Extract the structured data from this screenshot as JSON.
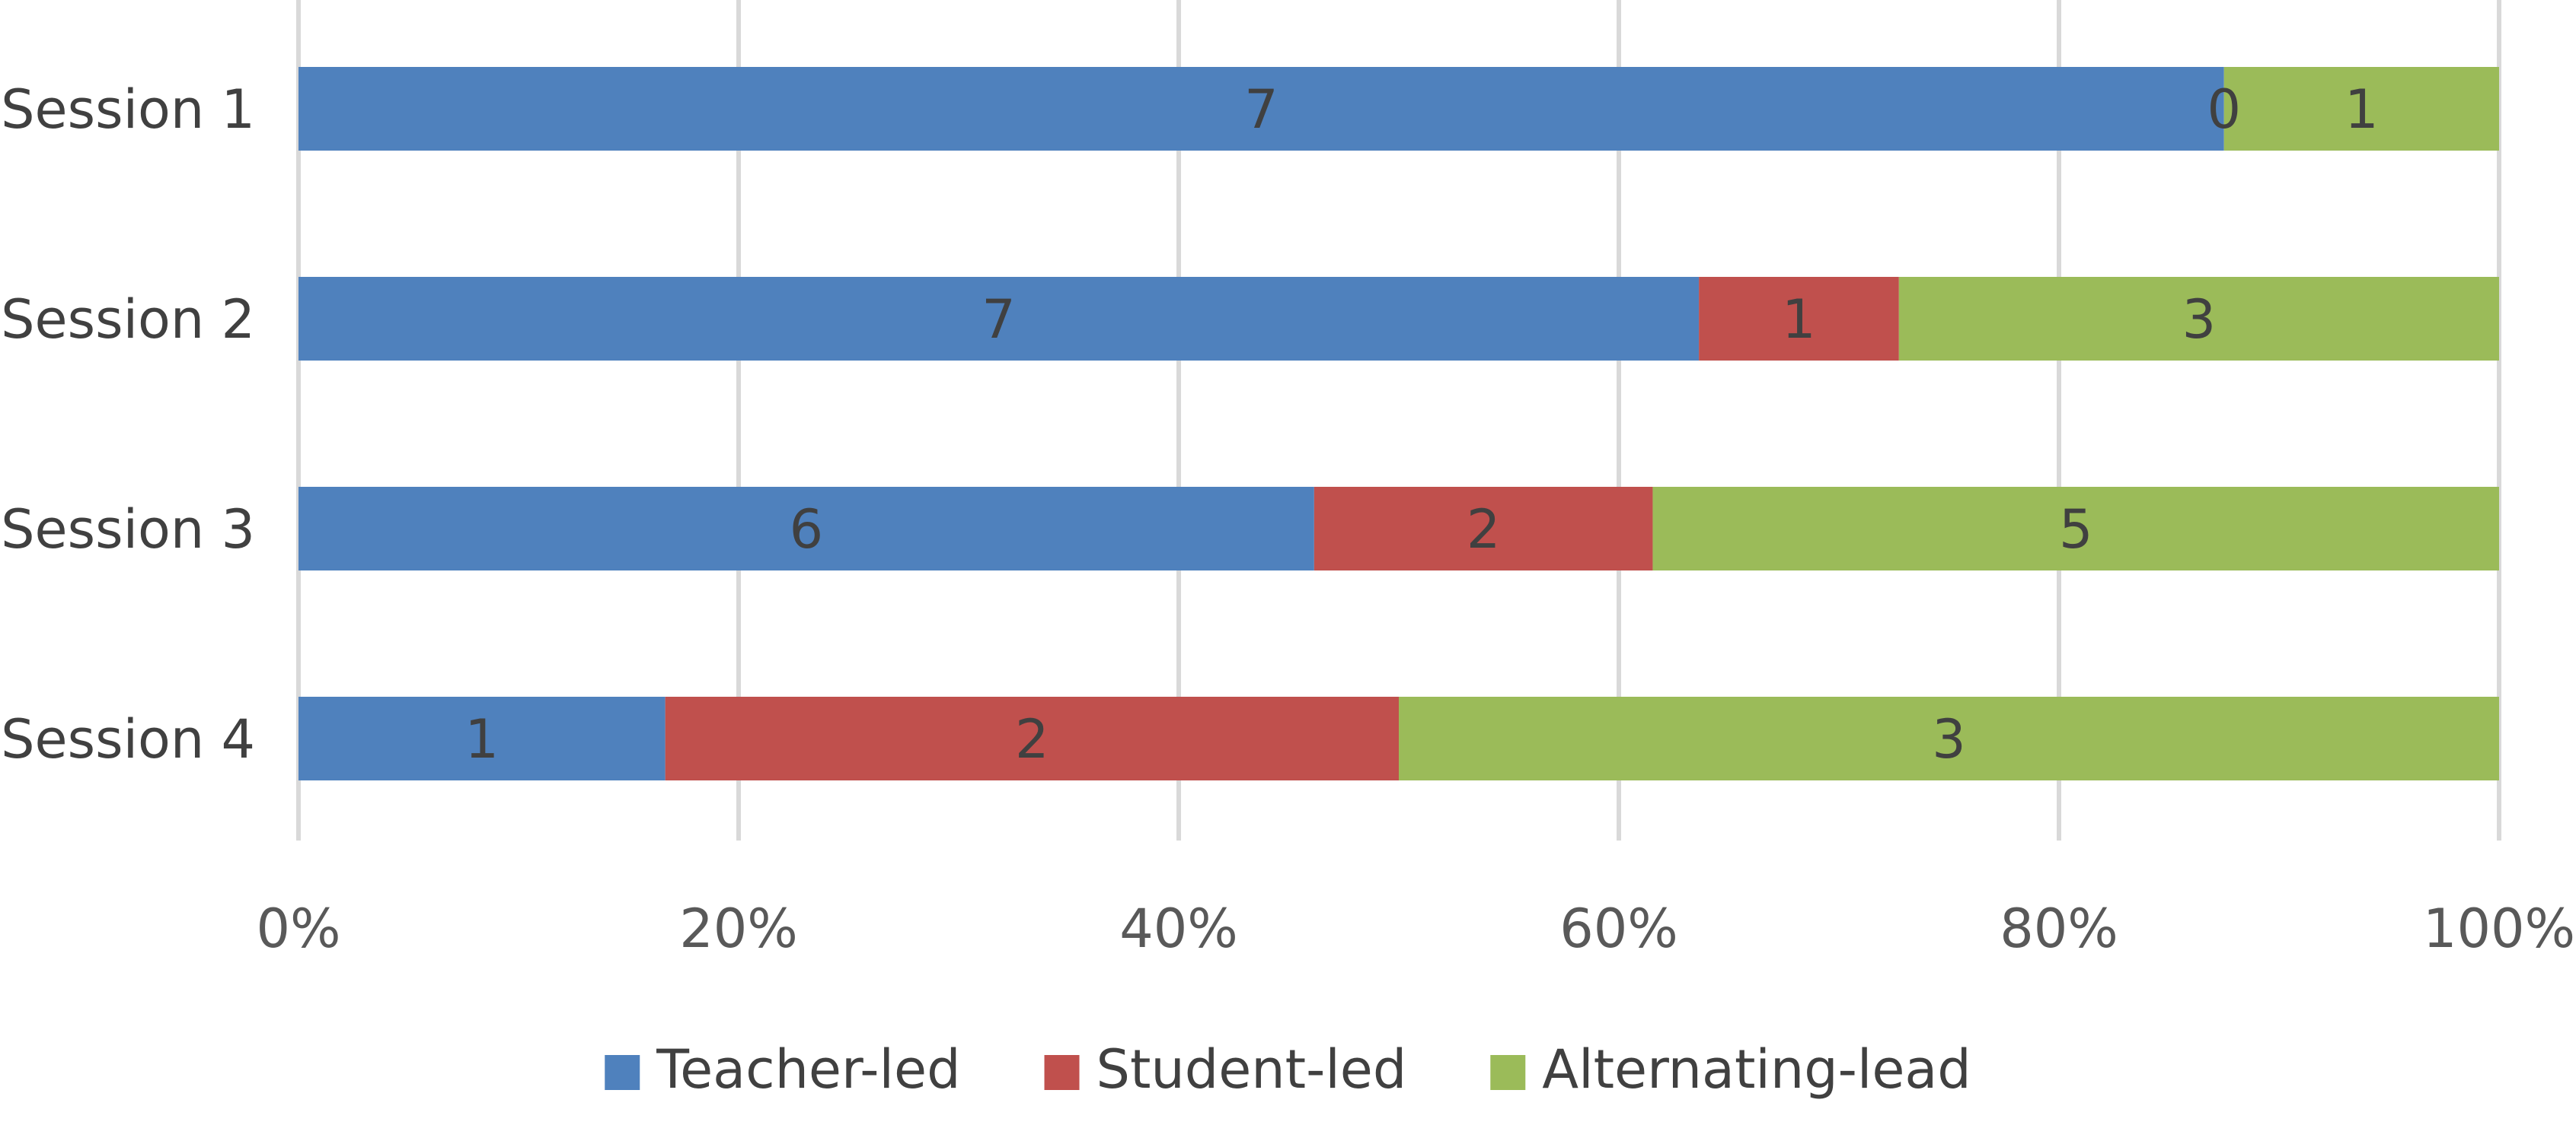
{
  "chart_data": {
    "type": "bar",
    "orientation": "horizontal",
    "stacked": "percent",
    "categories": [
      "Session 1",
      "Session 2",
      "Session 3",
      "Session 4"
    ],
    "series": [
      {
        "name": "Teacher-led",
        "values": [
          7,
          7,
          6,
          1
        ],
        "color": "#4f81bd"
      },
      {
        "name": "Student-led",
        "values": [
          0,
          1,
          2,
          2
        ],
        "color": "#c0504d"
      },
      {
        "name": "Alternating-lead",
        "values": [
          1,
          3,
          5,
          3
        ],
        "color": "#9bbb59"
      }
    ],
    "x_ticks": [
      "0%",
      "20%",
      "40%",
      "60%",
      "80%",
      "100%"
    ],
    "xlim": [
      0,
      100
    ],
    "grid": "vertical",
    "legend": "bottom",
    "data_labels": true
  }
}
